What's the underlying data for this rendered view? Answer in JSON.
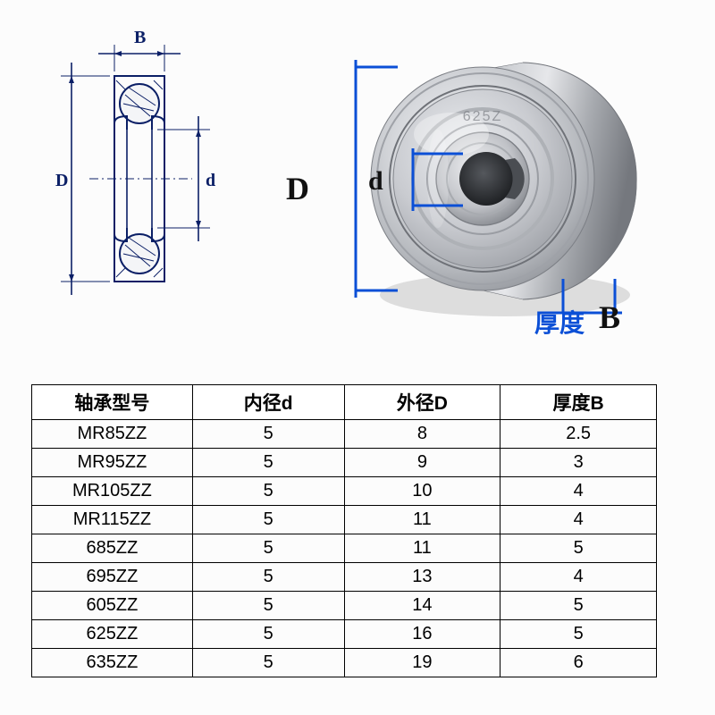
{
  "diagram": {
    "tech": {
      "stroke": "#0b1f66",
      "label_B": "B",
      "label_D": "D",
      "label_d": "d"
    },
    "photo": {
      "metal_light": "#e8e9eb",
      "metal_mid": "#c6c8cc",
      "metal_dark": "#8e9197",
      "metal_shadow": "#5a5d63",
      "bore_dark": "#2e3033",
      "engraving": "625Z",
      "dim_stroke": "#0b4fd6",
      "label_D": "D",
      "label_d": "d",
      "label_B": "B",
      "label_thickness_cn": "厚度",
      "label_fontsize_main": 36,
      "label_fontsize_d": 30,
      "label_fontsize_cn": 28,
      "label_fontsize_B": 36,
      "label_color_cn": "#0b4fd6",
      "label_color_main": "#111111"
    }
  },
  "table": {
    "headers": [
      "轴承型号",
      "内径d",
      "外径D",
      "厚度B"
    ],
    "header_fontweight": "bold",
    "rows": [
      [
        "MR85ZZ",
        "5",
        "8",
        "2.5"
      ],
      [
        "MR95ZZ",
        "5",
        "9",
        "3"
      ],
      [
        "MR105ZZ",
        "5",
        "10",
        "4"
      ],
      [
        "MR115ZZ",
        "5",
        "11",
        "4"
      ],
      [
        "685ZZ",
        "5",
        "11",
        "5"
      ],
      [
        "695ZZ",
        "5",
        "13",
        "4"
      ],
      [
        "605ZZ",
        "5",
        "14",
        "5"
      ],
      [
        "625ZZ",
        "5",
        "16",
        "5"
      ],
      [
        "635ZZ",
        "5",
        "19",
        "6"
      ]
    ],
    "border_color": "#000000",
    "fontsize": 20
  }
}
